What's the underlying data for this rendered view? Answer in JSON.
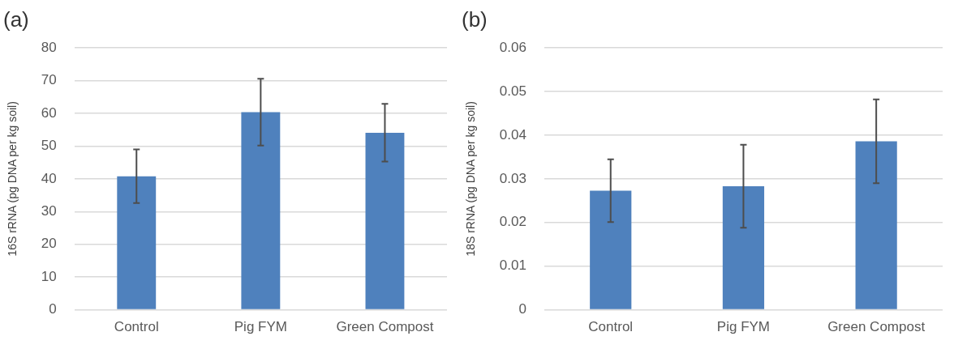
{
  "chart_data": [
    {
      "type": "bar",
      "title": "(a)",
      "ylabel": "16S rRNA (pg DNA per kg soil)",
      "categories": [
        "Control",
        "Pig FYM",
        "Green Compost"
      ],
      "values": [
        40.8,
        60.4,
        54.1
      ],
      "errors": [
        8.2,
        10.2,
        8.8
      ],
      "color": "#4f81bd",
      "ylim": [
        0,
        80
      ],
      "yticks": [
        0,
        10,
        20,
        30,
        40,
        50,
        60,
        70,
        80
      ],
      "grid": "y"
    },
    {
      "type": "bar",
      "title": "(b)",
      "ylabel": "18S rRNA (pg DNA per kg soil)",
      "categories": [
        "Control",
        "Pig FYM",
        "Green Compost"
      ],
      "values": [
        0.0273,
        0.0283,
        0.0386
      ],
      "errors": [
        0.0072,
        0.0095,
        0.0096
      ],
      "color": "#4f81bd",
      "ylim": [
        0,
        0.06
      ],
      "yticks": [
        0,
        0.01,
        0.02,
        0.03,
        0.04,
        0.05,
        0.06
      ],
      "grid": "y"
    }
  ]
}
